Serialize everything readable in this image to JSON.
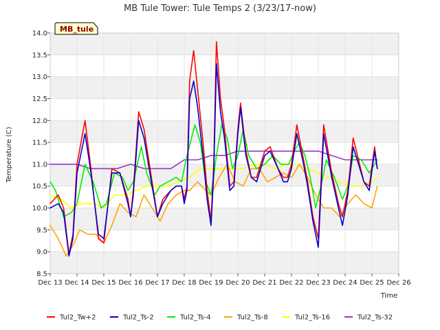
{
  "chart_data": {
    "type": "line",
    "title": "MB Tule Tower: Tule Temps 2 (3/23/17-now)",
    "xlabel": "Time",
    "ylabel": "Temperature (C)",
    "badge": "MB_tule",
    "xlim": [
      13,
      26
    ],
    "ylim": [
      8.5,
      14.0
    ],
    "x_ticks": [
      13,
      14,
      15,
      16,
      17,
      18,
      19,
      20,
      21,
      22,
      23,
      24,
      25,
      26
    ],
    "x_tick_labels": [
      "Dec 13",
      "Dec 14",
      "Dec 15",
      "Dec 16",
      "Dec 17",
      "Dec 18",
      "Dec 19",
      "Dec 20",
      "Dec 21",
      "Dec 22",
      "Dec 23",
      "Dec 24",
      "Dec 25",
      "Dec 26"
    ],
    "y_ticks": [
      8.5,
      9.0,
      9.5,
      10.0,
      10.5,
      11.0,
      11.5,
      12.0,
      12.5,
      13.0,
      13.5,
      14.0
    ],
    "y_tick_labels": [
      "8.5",
      "9.0",
      "9.5",
      "10.0",
      "10.5",
      "11.0",
      "11.5",
      "12.0",
      "12.5",
      "13.0",
      "13.5",
      "14.0"
    ],
    "legend_position": "bottom",
    "series": [
      {
        "name": "Tul2_Tw+2",
        "color": "#ff0000",
        "x": [
          13.0,
          13.3,
          13.5,
          13.7,
          13.85,
          14.0,
          14.3,
          14.5,
          14.8,
          15.0,
          15.3,
          15.6,
          15.9,
          16.0,
          16.1,
          16.3,
          16.5,
          16.8,
          17.0,
          17.2,
          17.5,
          17.7,
          17.9,
          18.0,
          18.1,
          18.2,
          18.35,
          18.5,
          18.7,
          18.85,
          19.0,
          19.1,
          19.2,
          19.35,
          19.5,
          19.7,
          19.85,
          20.0,
          20.1,
          20.3,
          20.5,
          20.7,
          21.0,
          21.2,
          21.5,
          21.7,
          21.85,
          22.0,
          22.2,
          22.45,
          22.6,
          22.8,
          23.0,
          23.2,
          23.5,
          23.75,
          23.9,
          24.1,
          24.3,
          24.5,
          24.7,
          24.9,
          25.1,
          25.2
        ],
        "y": [
          10.1,
          10.3,
          10.0,
          8.95,
          9.4,
          11.0,
          12.0,
          11.0,
          9.3,
          9.2,
          10.9,
          10.8,
          10.2,
          9.8,
          10.4,
          12.2,
          11.8,
          10.6,
          9.8,
          10.2,
          10.4,
          10.5,
          10.5,
          10.2,
          10.5,
          12.9,
          13.6,
          12.7,
          11.5,
          10.4,
          9.7,
          11.0,
          13.8,
          12.5,
          11.8,
          10.5,
          10.6,
          11.8,
          12.4,
          11.3,
          10.7,
          10.7,
          11.3,
          11.4,
          10.9,
          10.7,
          10.7,
          11.0,
          11.9,
          11.1,
          10.6,
          9.8,
          9.3,
          11.9,
          10.8,
          10.1,
          9.8,
          10.4,
          11.6,
          11.1,
          10.6,
          10.5,
          11.4,
          10.9
        ]
      },
      {
        "name": "Tul2_Ts-2",
        "color": "#0000cc",
        "x": [
          13.0,
          13.3,
          13.5,
          13.7,
          13.85,
          14.0,
          14.3,
          14.5,
          14.8,
          15.0,
          15.3,
          15.6,
          15.9,
          16.0,
          16.1,
          16.3,
          16.5,
          16.8,
          17.0,
          17.2,
          17.5,
          17.7,
          17.9,
          18.0,
          18.1,
          18.2,
          18.35,
          18.5,
          18.7,
          18.85,
          19.0,
          19.1,
          19.2,
          19.35,
          19.5,
          19.7,
          19.85,
          20.0,
          20.1,
          20.3,
          20.5,
          20.7,
          21.0,
          21.2,
          21.5,
          21.7,
          21.85,
          22.0,
          22.2,
          22.45,
          22.6,
          22.8,
          23.0,
          23.2,
          23.5,
          23.75,
          23.9,
          24.1,
          24.3,
          24.5,
          24.7,
          24.9,
          25.1,
          25.2
        ],
        "y": [
          10.0,
          10.1,
          9.9,
          8.9,
          9.3,
          10.8,
          11.7,
          10.9,
          9.4,
          9.3,
          10.8,
          10.8,
          10.1,
          9.8,
          10.3,
          12.0,
          11.6,
          10.5,
          9.8,
          10.1,
          10.4,
          10.5,
          10.5,
          10.1,
          10.4,
          12.5,
          12.9,
          12.3,
          11.2,
          10.2,
          9.6,
          10.8,
          13.3,
          12.2,
          11.6,
          10.4,
          10.5,
          11.7,
          12.3,
          11.2,
          10.7,
          10.6,
          11.2,
          11.3,
          10.9,
          10.6,
          10.6,
          10.9,
          11.7,
          11.0,
          10.5,
          9.7,
          9.1,
          11.7,
          10.7,
          10.0,
          9.6,
          10.3,
          11.4,
          11.0,
          10.6,
          10.4,
          11.3,
          10.9
        ]
      },
      {
        "name": "Tul2_Ts-4",
        "color": "#00ee00",
        "x": [
          13.0,
          13.2,
          13.5,
          13.8,
          14.0,
          14.3,
          14.6,
          14.9,
          15.1,
          15.4,
          15.7,
          15.9,
          16.1,
          16.4,
          16.6,
          16.9,
          17.1,
          17.4,
          17.7,
          17.9,
          18.1,
          18.4,
          18.6,
          18.8,
          19.0,
          19.2,
          19.4,
          19.6,
          19.8,
          20.0,
          20.2,
          20.4,
          20.7,
          21.0,
          21.3,
          21.6,
          21.9,
          22.1,
          22.3,
          22.5,
          22.7,
          22.9,
          23.1,
          23.3,
          23.6,
          23.9,
          24.1,
          24.3,
          24.6,
          24.9,
          25.2
        ],
        "y": [
          10.6,
          10.4,
          9.8,
          9.9,
          10.1,
          11.0,
          10.6,
          10.0,
          10.1,
          10.8,
          10.7,
          10.4,
          10.6,
          11.4,
          10.8,
          10.3,
          10.5,
          10.6,
          10.7,
          10.6,
          11.2,
          11.9,
          11.5,
          10.6,
          10.3,
          11.2,
          11.9,
          11.6,
          10.9,
          11.2,
          11.8,
          11.2,
          10.9,
          11.0,
          11.2,
          11.0,
          11.0,
          11.3,
          11.5,
          11.2,
          10.7,
          10.0,
          10.5,
          11.1,
          10.7,
          10.2,
          10.5,
          11.2,
          11.1,
          10.8,
          11.1
        ]
      },
      {
        "name": "Tul2_Ts-8",
        "color": "#ffa500",
        "x": [
          13.0,
          13.3,
          13.6,
          13.9,
          14.1,
          14.4,
          14.7,
          15.0,
          15.3,
          15.6,
          15.9,
          16.2,
          16.5,
          16.8,
          17.1,
          17.4,
          17.7,
          18.0,
          18.2,
          18.5,
          18.8,
          19.0,
          19.3,
          19.6,
          19.9,
          20.2,
          20.5,
          20.8,
          21.1,
          21.4,
          21.7,
          22.0,
          22.3,
          22.6,
          22.9,
          23.2,
          23.5,
          23.8,
          24.1,
          24.4,
          24.7,
          25.0,
          25.2
        ],
        "y": [
          9.6,
          9.3,
          8.9,
          9.2,
          9.5,
          9.4,
          9.4,
          9.2,
          9.6,
          10.1,
          9.9,
          9.8,
          10.3,
          10.0,
          9.7,
          10.1,
          10.3,
          10.4,
          10.4,
          10.6,
          10.4,
          10.3,
          10.7,
          11.0,
          10.6,
          10.5,
          10.9,
          10.9,
          10.6,
          10.7,
          10.8,
          10.7,
          11.0,
          10.7,
          10.3,
          10.0,
          10.0,
          9.8,
          10.1,
          10.3,
          10.1,
          10.0,
          10.5
        ]
      },
      {
        "name": "Tul2_Ts-16",
        "color": "#ffff00",
        "x": [
          13.0,
          13.4,
          13.8,
          14.2,
          14.6,
          15.0,
          15.4,
          15.8,
          16.2,
          16.6,
          17.0,
          17.4,
          17.8,
          18.2,
          18.6,
          19.0,
          19.4,
          19.8,
          20.2,
          20.6,
          21.0,
          21.4,
          21.8,
          22.2,
          22.6,
          23.0,
          23.4,
          23.8,
          24.2,
          24.6,
          25.0,
          25.2
        ],
        "y": [
          10.3,
          10.2,
          10.0,
          10.1,
          10.1,
          10.0,
          10.3,
          10.3,
          10.4,
          10.5,
          10.5,
          10.5,
          10.6,
          10.7,
          10.9,
          10.9,
          10.9,
          10.9,
          10.9,
          11.0,
          11.0,
          10.9,
          11.0,
          11.0,
          10.9,
          10.8,
          10.7,
          10.6,
          10.5,
          10.5,
          10.6,
          10.7
        ]
      },
      {
        "name": "Tul2_Ts-32",
        "color": "#9933cc",
        "x": [
          13.0,
          13.5,
          14.0,
          14.5,
          15.0,
          15.5,
          16.0,
          16.5,
          17.0,
          17.5,
          18.0,
          18.5,
          19.0,
          19.5,
          20.0,
          20.5,
          21.0,
          21.5,
          22.0,
          22.5,
          23.0,
          23.5,
          24.0,
          24.5,
          25.0,
          25.2
        ],
        "y": [
          11.0,
          11.0,
          11.0,
          10.9,
          10.9,
          10.9,
          11.0,
          10.9,
          10.9,
          10.9,
          11.1,
          11.1,
          11.2,
          11.2,
          11.3,
          11.3,
          11.3,
          11.3,
          11.3,
          11.3,
          11.3,
          11.2,
          11.1,
          11.1,
          11.1,
          11.1
        ]
      }
    ]
  }
}
